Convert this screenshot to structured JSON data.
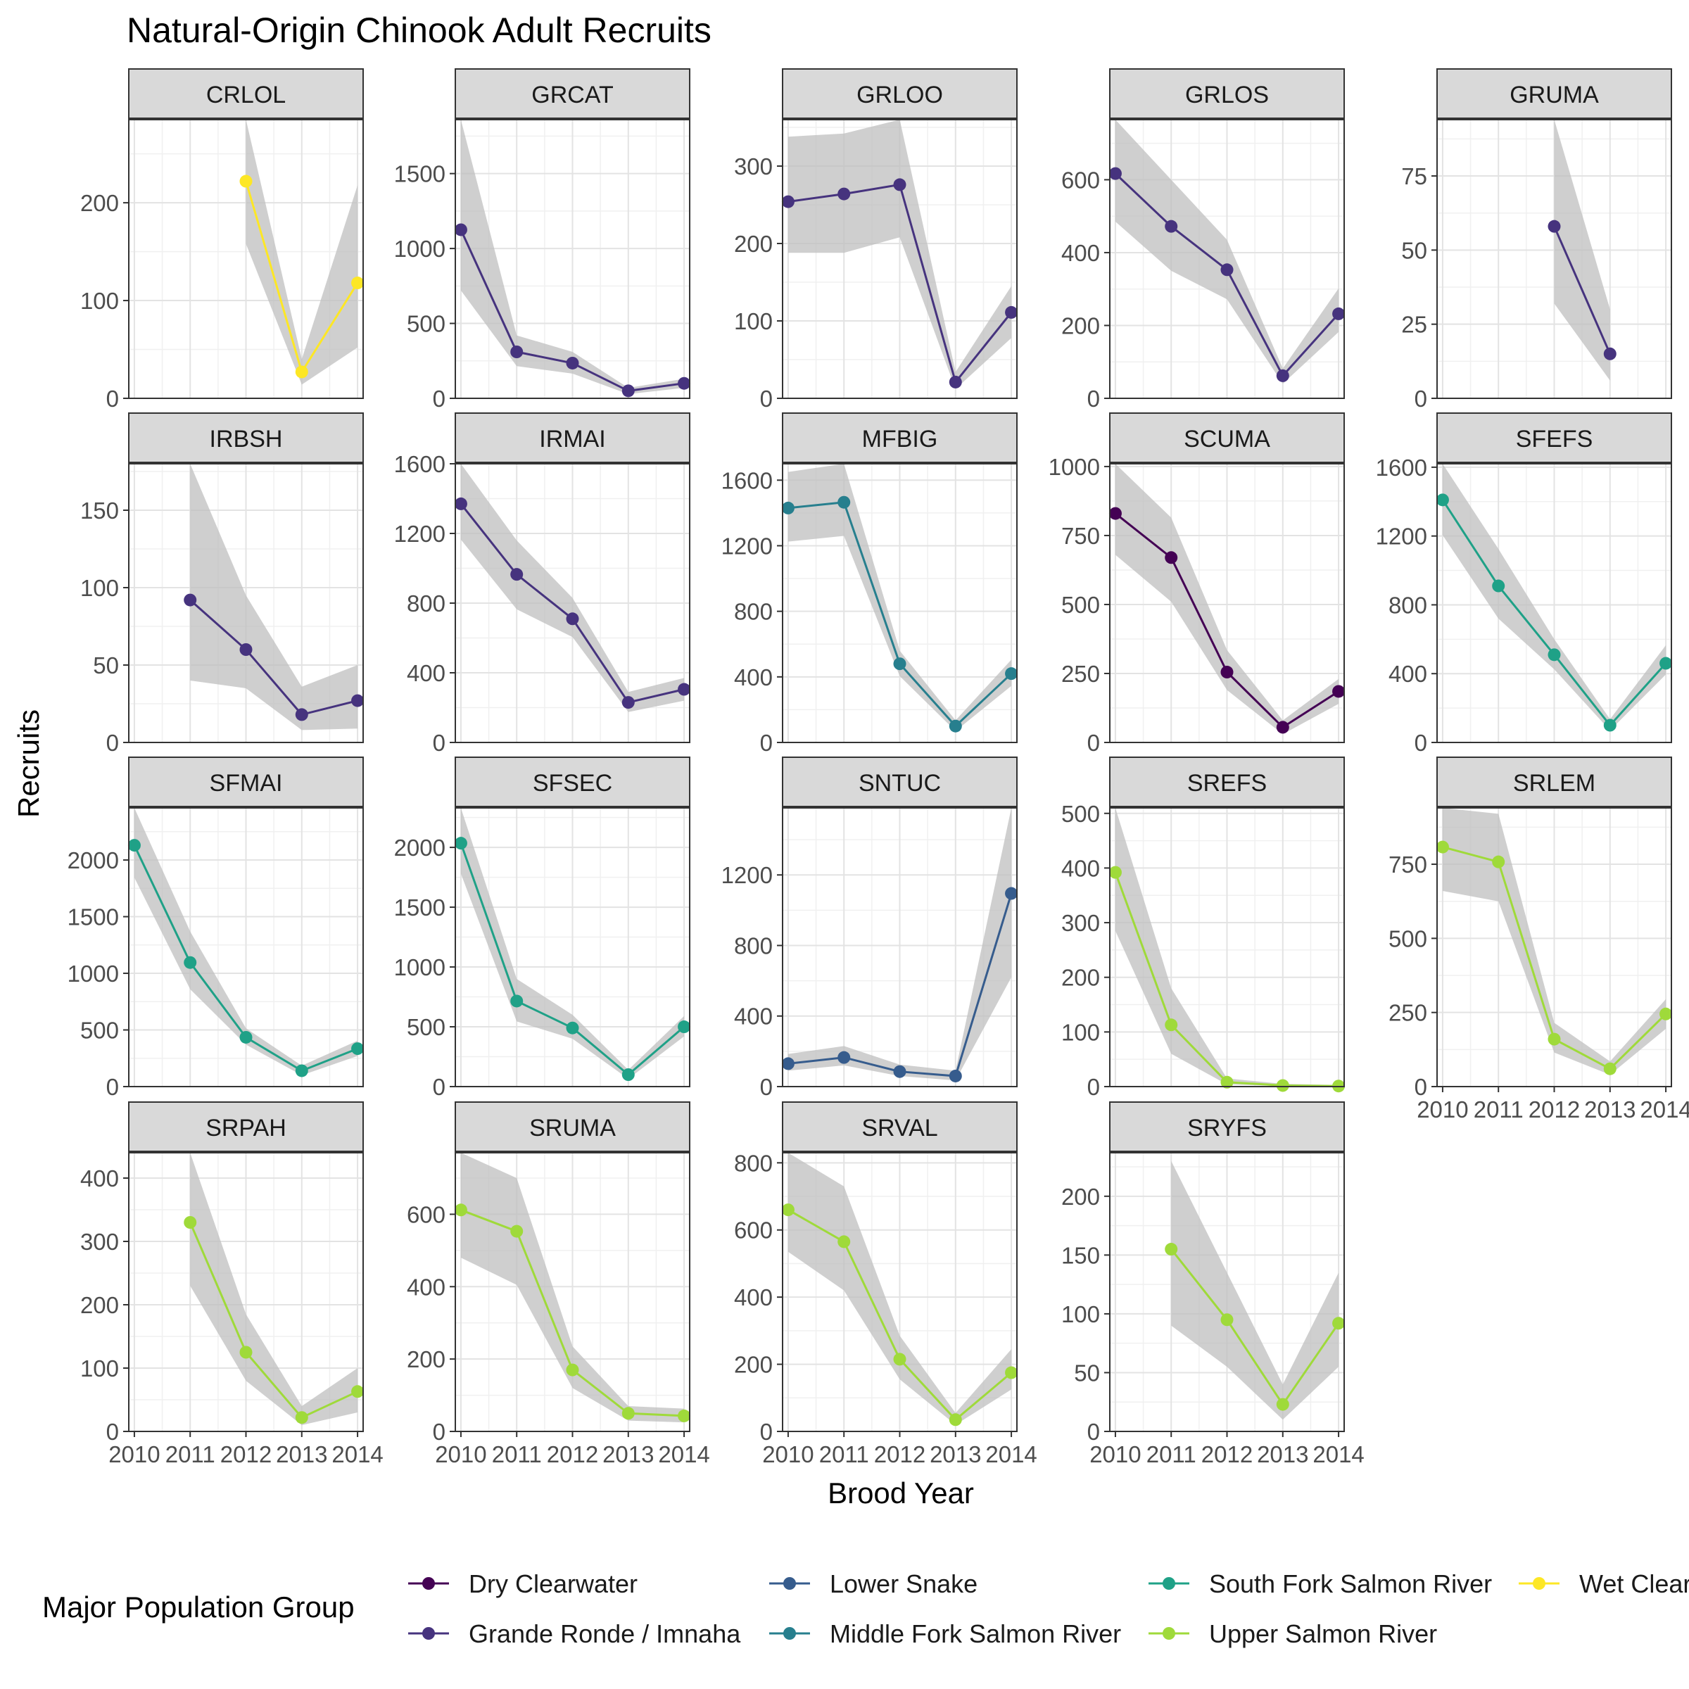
{
  "chart_data": {
    "type": "line",
    "title": "Natural-Origin Chinook Adult Recruits",
    "xlabel": "Brood Year",
    "ylabel": "Recruits",
    "x_ticks": [
      "2010",
      "2011",
      "2012",
      "2013",
      "2014"
    ],
    "legend": {
      "title": "Major Population Group",
      "position": "bottom",
      "entries": [
        {
          "name": "Dry Clearwater",
          "color": "#440154"
        },
        {
          "name": "Grande Ronde / Imnaha",
          "color": "#46337E"
        },
        {
          "name": "Lower Snake",
          "color": "#365C8D"
        },
        {
          "name": "Middle Fork Salmon River",
          "color": "#277F8E"
        },
        {
          "name": "South Fork Salmon River",
          "color": "#1FA187"
        },
        {
          "name": "Upper Salmon River",
          "color": "#9FDA3A"
        },
        {
          "name": "Wet Clearwater",
          "color": "#FDE725"
        }
      ]
    },
    "ribbon_color": "#bfbfbf",
    "grid": true,
    "facets": [
      {
        "name": "CRLOL",
        "group": "Wet Clearwater",
        "ylim": [
          0,
          285
        ],
        "yticks": [
          0,
          100,
          200
        ],
        "x": [
          2012,
          2013,
          2014
        ],
        "values": [
          222,
          27,
          118
        ],
        "lower": [
          158,
          14,
          52
        ],
        "upper": [
          290,
          40,
          218
        ]
      },
      {
        "name": "GRCAT",
        "group": "Grande Ronde / Imnaha",
        "ylim": [
          0,
          1860
        ],
        "yticks": [
          0,
          500,
          1000,
          1500
        ],
        "x": [
          2010,
          2011,
          2012,
          2013,
          2014
        ],
        "values": [
          1125,
          310,
          235,
          50,
          100
        ],
        "lower": [
          720,
          215,
          165,
          28,
          70
        ],
        "upper": [
          1860,
          420,
          310,
          70,
          130
        ]
      },
      {
        "name": "GRLOO",
        "group": "Grande Ronde / Imnaha",
        "ylim": [
          0,
          360
        ],
        "yticks": [
          0,
          100,
          200,
          300
        ],
        "x": [
          2010,
          2011,
          2012,
          2013,
          2014
        ],
        "values": [
          254,
          264,
          276,
          21,
          111
        ],
        "lower": [
          188,
          188,
          208,
          12,
          78
        ],
        "upper": [
          338,
          342,
          362,
          34,
          145
        ]
      },
      {
        "name": "GRLOS",
        "group": "Grande Ronde / Imnaha",
        "ylim": [
          0,
          765
        ],
        "yticks": [
          0,
          200,
          400,
          600
        ],
        "x": [
          2010,
          2011,
          2012,
          2013,
          2014
        ],
        "values": [
          617,
          472,
          353,
          62,
          232
        ],
        "lower": [
          485,
          350,
          272,
          40,
          182
        ],
        "upper": [
          765,
          600,
          435,
          82,
          302
        ]
      },
      {
        "name": "GRUMA",
        "group": "Grande Ronde / Imnaha",
        "ylim": [
          0,
          94
        ],
        "yticks": [
          0,
          25,
          50,
          75
        ],
        "x": [
          2012,
          2013
        ],
        "values": [
          58,
          15
        ],
        "lower": [
          32,
          6
        ],
        "upper": [
          94,
          30
        ]
      },
      {
        "name": "IRBSH",
        "group": "Grande Ronde / Imnaha",
        "ylim": [
          0,
          180
        ],
        "yticks": [
          0,
          50,
          100,
          150
        ],
        "x": [
          2011,
          2012,
          2013,
          2014
        ],
        "values": [
          92,
          60,
          18,
          27
        ],
        "lower": [
          40,
          35,
          8,
          9
        ],
        "upper": [
          180,
          95,
          36,
          50
        ]
      },
      {
        "name": "IRMAI",
        "group": "Grande Ronde / Imnaha",
        "ylim": [
          0,
          1600
        ],
        "yticks": [
          0,
          400,
          800,
          1200,
          1600
        ],
        "x": [
          2010,
          2011,
          2012,
          2013,
          2014
        ],
        "values": [
          1370,
          965,
          710,
          230,
          305
        ],
        "lower": [
          1165,
          765,
          605,
          175,
          240
        ],
        "upper": [
          1600,
          1160,
          830,
          290,
          370
        ]
      },
      {
        "name": "MFBIG",
        "group": "Middle Fork Salmon River",
        "ylim": [
          0,
          1700
        ],
        "yticks": [
          0,
          400,
          800,
          1200,
          1600
        ],
        "x": [
          2010,
          2011,
          2012,
          2013,
          2014
        ],
        "values": [
          1430,
          1465,
          480,
          100,
          420
        ],
        "lower": [
          1225,
          1260,
          405,
          70,
          345
        ],
        "upper": [
          1650,
          1700,
          560,
          135,
          505
        ]
      },
      {
        "name": "SCUMA",
        "group": "Dry Clearwater",
        "ylim": [
          0,
          1010
        ],
        "yticks": [
          0,
          250,
          500,
          750,
          1000
        ],
        "x": [
          2010,
          2011,
          2012,
          2013,
          2014
        ],
        "values": [
          830,
          670,
          255,
          55,
          185
        ],
        "lower": [
          680,
          510,
          190,
          30,
          140
        ],
        "upper": [
          1010,
          815,
          335,
          80,
          230
        ]
      },
      {
        "name": "SFEFS",
        "group": "South Fork Salmon River",
        "ylim": [
          0,
          1620
        ],
        "yticks": [
          0,
          400,
          800,
          1200,
          1600
        ],
        "x": [
          2010,
          2011,
          2012,
          2013,
          2014
        ],
        "values": [
          1410,
          910,
          510,
          100,
          460
        ],
        "lower": [
          1205,
          720,
          425,
          70,
          395
        ],
        "upper": [
          1620,
          1125,
          600,
          135,
          565
        ]
      },
      {
        "name": "SFMAI",
        "group": "South Fork Salmon River",
        "ylim": [
          0,
          2460
        ],
        "yticks": [
          0,
          500,
          1000,
          1500,
          2000
        ],
        "x": [
          2010,
          2011,
          2012,
          2013,
          2014
        ],
        "values": [
          2130,
          1095,
          435,
          140,
          335
        ],
        "lower": [
          1845,
          860,
          370,
          100,
          270
        ],
        "upper": [
          2460,
          1370,
          515,
          185,
          405
        ]
      },
      {
        "name": "SFSEC",
        "group": "South Fork Salmon River",
        "ylim": [
          0,
          2330
        ],
        "yticks": [
          0,
          500,
          1000,
          1500,
          2000
        ],
        "x": [
          2010,
          2011,
          2012,
          2013,
          2014
        ],
        "values": [
          2035,
          715,
          490,
          100,
          500
        ],
        "lower": [
          1780,
          545,
          400,
          65,
          420
        ],
        "upper": [
          2330,
          900,
          600,
          140,
          590
        ]
      },
      {
        "name": "SNTUC",
        "group": "Lower Snake",
        "ylim": [
          0,
          1580
        ],
        "yticks": [
          0,
          400,
          800,
          1200
        ],
        "x": [
          2010,
          2011,
          2012,
          2013,
          2014
        ],
        "values": [
          130,
          165,
          85,
          60,
          1095
        ],
        "lower": [
          90,
          120,
          60,
          35,
          620
        ],
        "upper": [
          185,
          230,
          125,
          90,
          1580
        ]
      },
      {
        "name": "SREFS",
        "group": "Upper Salmon River",
        "ylim": [
          0,
          510
        ],
        "yticks": [
          0,
          100,
          200,
          300,
          400,
          500
        ],
        "x": [
          2010,
          2011,
          2012,
          2013,
          2014
        ],
        "values": [
          392,
          113,
          8,
          2,
          1
        ],
        "lower": [
          285,
          60,
          4,
          1,
          0
        ],
        "upper": [
          510,
          180,
          15,
          5,
          3
        ]
      },
      {
        "name": "SRLEM",
        "group": "Upper Salmon River",
        "ylim": [
          0,
          940
        ],
        "yticks": [
          0,
          250,
          500,
          750
        ],
        "x": [
          2010,
          2011,
          2012,
          2013,
          2014
        ],
        "values": [
          808,
          758,
          160,
          60,
          245
        ],
        "lower": [
          660,
          625,
          115,
          40,
          195
        ],
        "upper": [
          940,
          920,
          215,
          85,
          295
        ]
      },
      {
        "name": "SRPAH",
        "group": "Upper Salmon River",
        "ylim": [
          0,
          440
        ],
        "yticks": [
          0,
          100,
          200,
          300,
          400
        ],
        "x": [
          2011,
          2012,
          2013,
          2014
        ],
        "values": [
          330,
          125,
          22,
          63
        ],
        "lower": [
          230,
          80,
          10,
          30
        ],
        "upper": [
          440,
          185,
          40,
          100
        ]
      },
      {
        "name": "SRUMA",
        "group": "Upper Salmon River",
        "ylim": [
          0,
          770
        ],
        "yticks": [
          0,
          200,
          400,
          600
        ],
        "x": [
          2010,
          2011,
          2012,
          2013,
          2014
        ],
        "values": [
          612,
          553,
          170,
          50,
          43
        ],
        "lower": [
          480,
          405,
          120,
          30,
          25
        ],
        "upper": [
          770,
          700,
          235,
          70,
          63
        ]
      },
      {
        "name": "SRVAL",
        "group": "Upper Salmon River",
        "ylim": [
          0,
          830
        ],
        "yticks": [
          0,
          200,
          400,
          600,
          800
        ],
        "x": [
          2010,
          2011,
          2012,
          2013,
          2014
        ],
        "values": [
          660,
          565,
          215,
          35,
          175
        ],
        "lower": [
          535,
          420,
          155,
          20,
          125
        ],
        "upper": [
          830,
          730,
          285,
          55,
          245
        ]
      },
      {
        "name": "SRYFS",
        "group": "Upper Salmon River",
        "ylim": [
          0,
          237
        ],
        "yticks": [
          0,
          50,
          100,
          150,
          200
        ],
        "x": [
          2011,
          2012,
          2013,
          2014
        ],
        "values": [
          155,
          95,
          23,
          92
        ],
        "lower": [
          90,
          55,
          10,
          55
        ],
        "upper": [
          230,
          135,
          40,
          135
        ]
      }
    ]
  }
}
